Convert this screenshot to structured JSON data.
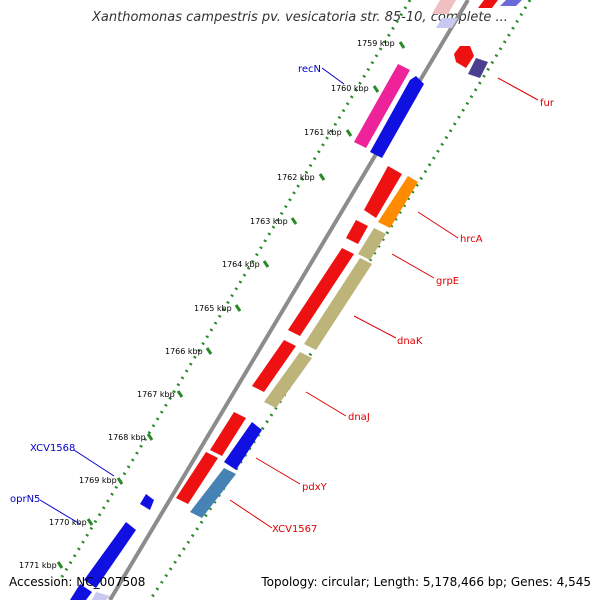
{
  "title": "Xanthomonas campestris pv. vesicatoria str. 85-10, complete ...",
  "footer": {
    "accession": "Accession: NC_007508",
    "summary": "Topology: circular; Length: 5,178,466 bp; Genes: 4,545"
  },
  "colors": {
    "backbone": "#8c8c8c",
    "tick_green": "#2a8a2a",
    "forward_cds": "#1010e0",
    "reverse_cds": "#ee1111",
    "pink": "#ee2299",
    "orange": "#ff8c00",
    "olive": "#bdb47a",
    "steel": "#4682b4",
    "label_red": "#dd0000",
    "label_blue": "#0000cc"
  },
  "ticks": [
    "1759 kbp",
    "1760 kbp",
    "1761 kbp",
    "1762 kbp",
    "1763 kbp",
    "1764 kbp",
    "1765 kbp",
    "1766 kbp",
    "1767 kbp",
    "1768 kbp",
    "1769 kbp",
    "1770 kbp",
    "1771 kbp"
  ],
  "gene_labels": {
    "recN": "recN",
    "fur": "fur",
    "hrcA": "hrcA",
    "grpE": "grpE",
    "dnaK": "dnaK",
    "dnaJ": "dnaJ",
    "pdxY": "pdxY",
    "XCV1567": "XCV1567",
    "XCV1568": "XCV1568",
    "oprN5": "oprN5"
  }
}
